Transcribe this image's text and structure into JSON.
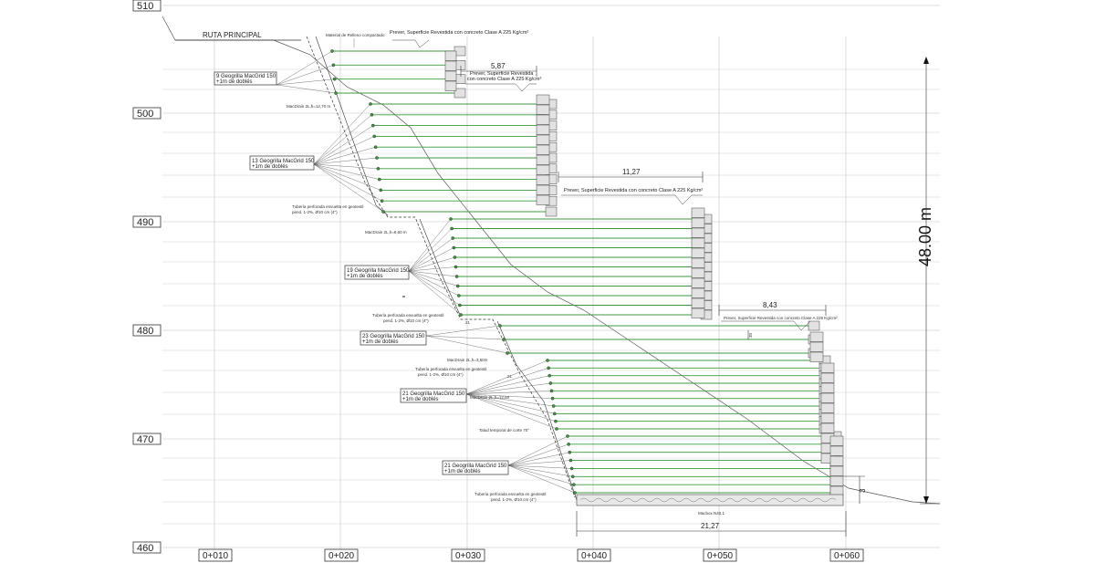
{
  "road": {
    "label": "RUTA PRINCIPAL"
  },
  "elevations": [
    "510",
    "500",
    "490",
    "480",
    "470",
    "460"
  ],
  "stations": [
    "0+010",
    "0+020",
    "0+030",
    "0+040",
    "0+050",
    "0+060"
  ],
  "total_height": "48.00 m",
  "dimensions": {
    "tier1_width": "5,87",
    "tier2_width": "11,27",
    "tier3_width": "8,43",
    "base_width": "21,27",
    "toe_height": "3",
    "small_1": "21",
    "small_2": "21",
    "small_3": "30"
  },
  "geogrid_tags": [
    {
      "line1": "9 Geogrilla MacGrid 150",
      "line2": "+1m de doblés"
    },
    {
      "line1": "13 Geogrilla MacGrid 150",
      "line2": "+1m de doblés"
    },
    {
      "line1": "19 Geogrilla MacGrid 150",
      "line2": "+1m de doblés"
    },
    {
      "line1": "23 Geogrilla MacGrid 150",
      "line2": "+1m de doblés"
    },
    {
      "line1": "21 Geogrilla MacGrid 150",
      "line2": "+1m de doblés"
    },
    {
      "line1": "21 Geogrilla MacGrid 150",
      "line2": "+1m de doblés"
    }
  ],
  "notes": {
    "fill": "Material de Relleno compactado",
    "surface_1": "Prever, Superficie Revestida con concreto Clase A 225 Kg/cm²",
    "surface_2a": "Prever, Superficie Revestida",
    "surface_2b": "con concreto Clase A 225 Kg/cm²",
    "surface_3": "Prever, Superficie Revestida con concreto Clase A 225 Kg/cm²",
    "surface_4": "Prever, Superficie Revestida con concreto Clase A 225 Kg/cm²",
    "drain_1": "MacDrain 2L,h=12,70 m",
    "pipe_1a": "Tubería perforada envuelta en geotextil",
    "pipe_1b": "pend. 1-2%, Ø10 cm (4\")",
    "drain_2": "MacDrain 2L,h=8,60 m",
    "pipe_2a": "Tubería perforada envuelta en geotextil",
    "pipe_2b": "pend. 1-2%, Ø10 cm (4\")",
    "drain_3": "MacDrain 2L,h=3,50m",
    "pipe_3a": "Tubería perforada envuelta en geotextil",
    "pipe_3b": "pend. 1-2%, Ø10 cm (4\")",
    "drain_4": "MacDrain 2L,h=12,60",
    "slope": "Talud temporal de corte 70°",
    "pipe_4a": "Tubería perforada envuelta en geotextil",
    "pipe_4b": "pend. 1-2%, Ø10 cm (4\")",
    "base": "Macbox N40.1"
  },
  "colors": {
    "geogrid": "#3c9a3c",
    "line": "#333333",
    "grid": "#bbbbbb",
    "gabion": "#d8d8d8"
  }
}
